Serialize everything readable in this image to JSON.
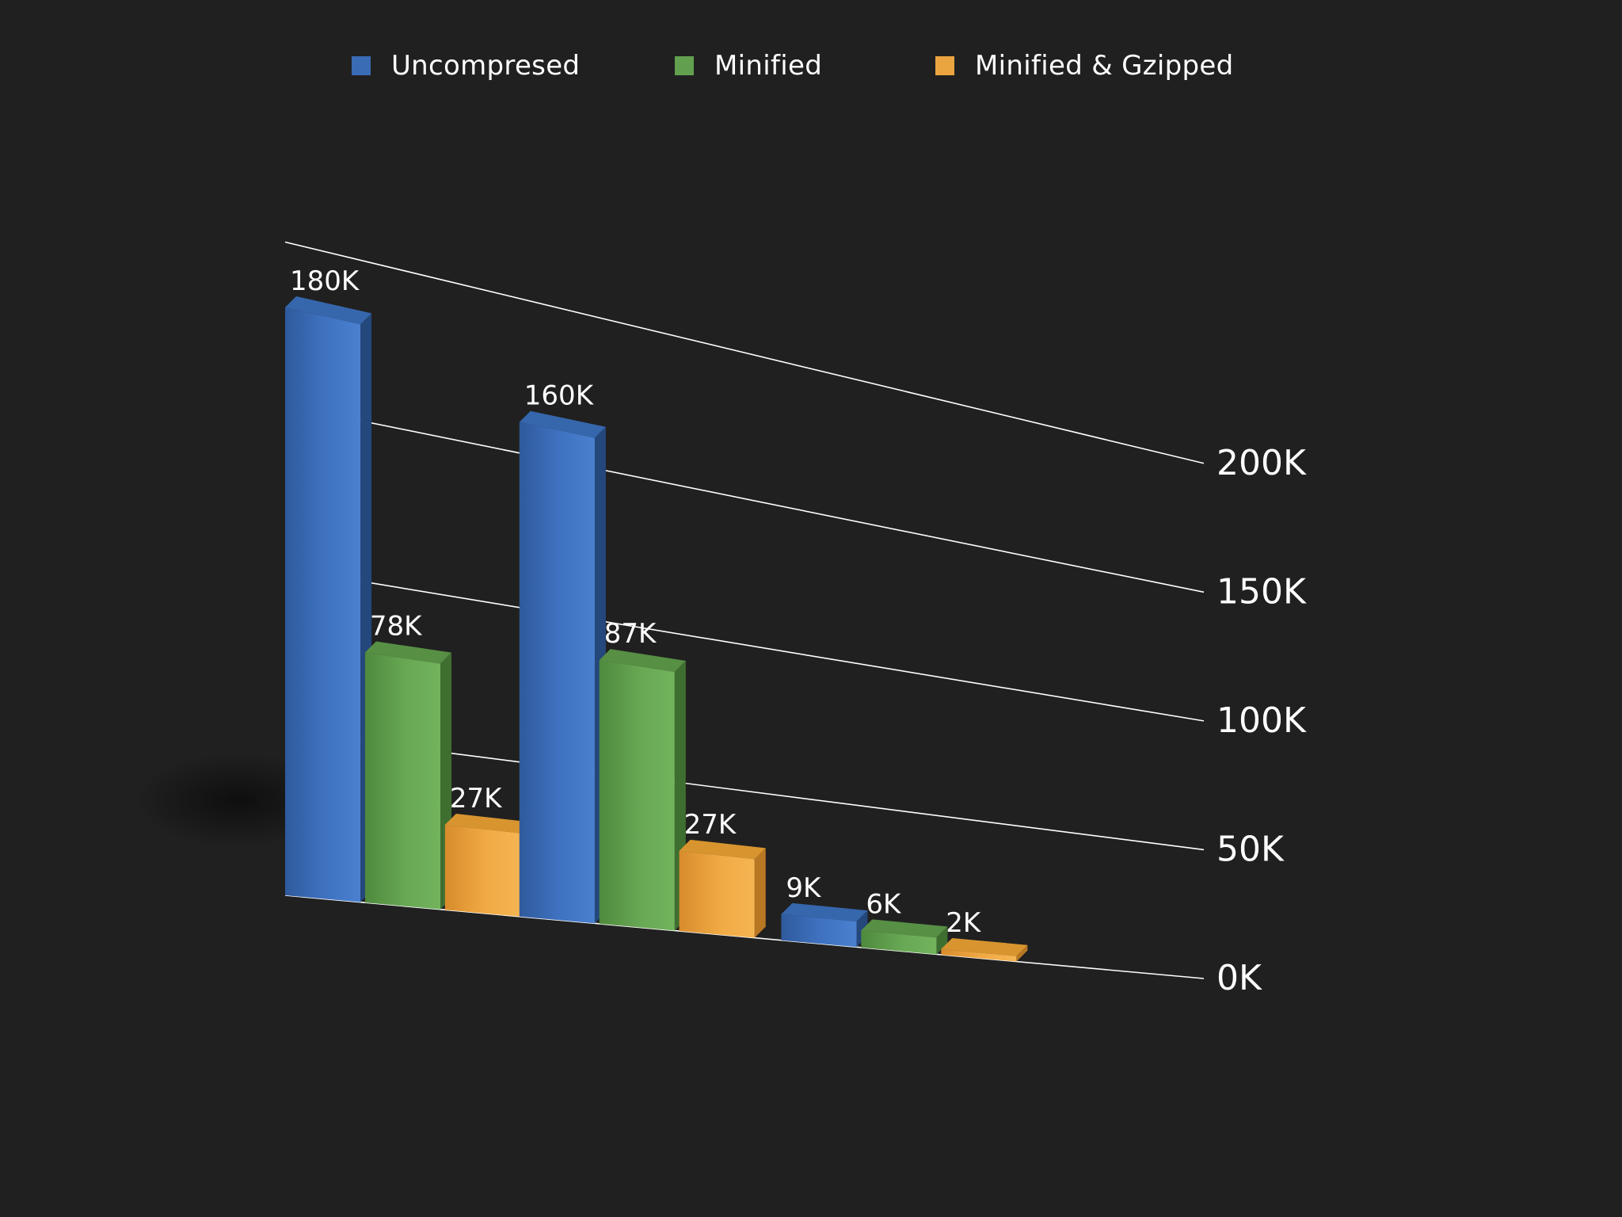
{
  "colors": {
    "background": "#202020",
    "uncompressed": "#3a6bb5",
    "minified": "#62a04f",
    "gzipped": "#eba540",
    "gridline": "#ffffff",
    "text": "#ffffff"
  },
  "legend": [
    {
      "label": "Uncompresed",
      "color": "#3a6bb5"
    },
    {
      "label": "Minified",
      "color": "#62a04f"
    },
    {
      "label": "Minified & Gzipped",
      "color": "#eba540"
    }
  ],
  "chart_data": {
    "type": "bar",
    "style": "3d-perspective",
    "title": "",
    "xlabel": "",
    "ylabel": "",
    "ylim": [
      0,
      200
    ],
    "y_unit": "K",
    "y_ticks": [
      "0K",
      "50K",
      "100K",
      "150K",
      "200K"
    ],
    "grid": true,
    "legend_position": "top",
    "categories": [
      "",
      "",
      ""
    ],
    "series": [
      {
        "name": "Uncompresed",
        "values": [
          180,
          160,
          9
        ],
        "labels": [
          "180K",
          "160K",
          "9K"
        ]
      },
      {
        "name": "Minified",
        "values": [
          78,
          87,
          6
        ],
        "labels": [
          "78K",
          "87K",
          "6K"
        ]
      },
      {
        "name": "Minified & Gzipped",
        "values": [
          27,
          27,
          2
        ],
        "labels": [
          "27K",
          "27K",
          "2K"
        ]
      }
    ]
  }
}
